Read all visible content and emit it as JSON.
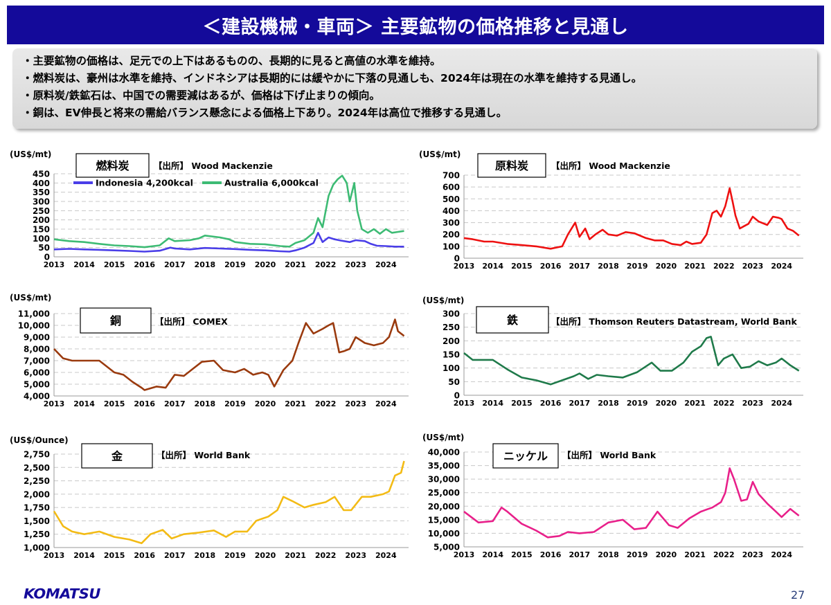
{
  "header": {
    "title": "＜建設機械・車両＞ 主要鉱物の価格推移と見通し"
  },
  "summary": [
    "・主要鉱物の価格は、足元での上下はあるものの、長期的に見ると高値の水準を維持。",
    "・燃料炭は、豪州は水準を維持、インドネシアは長期的には緩やかに下落の見通しも、2024年は現在の水準を維持する見通し。",
    "・原料炭/鉄鉱石は、中国での需要減はあるが、価格は下げ止まりの傾向。",
    "・銅は、EV伸長と将来の需給バランス懸念による価格上下あり。2024年は高位で推移する見通し。"
  ],
  "footer": {
    "logo": "KOMATSU",
    "page_number": "27"
  },
  "colors": {
    "title_bg": "#140a9a",
    "indonesia": "#4a3ee8",
    "australia": "#3dbb74",
    "coking": "#ee1111",
    "copper": "#9a3a0e",
    "iron": "#1f7a4a",
    "gold": "#f3bb15",
    "nickel": "#e8208a"
  },
  "chart_data": [
    {
      "type": "line",
      "title": "燃料炭",
      "source": "【出所】 Wood Mackenzie",
      "ylabel": "(US$/mt)",
      "xlim": [
        2013,
        2024.75
      ],
      "ylim": [
        0,
        450
      ],
      "yticks": [
        "0",
        "50",
        "100",
        "150",
        "200",
        "250",
        "300",
        "350",
        "400",
        "450"
      ],
      "xticks": [
        "2013",
        "2014",
        "2015",
        "2016",
        "2017",
        "2018",
        "2019",
        "2020",
        "2021",
        "2022",
        "2023",
        "2024"
      ],
      "series": [
        {
          "name": "Indonesia 4,200kcal",
          "color": "#4a3ee8",
          "x": [
            2013,
            2013.5,
            2014,
            2014.5,
            2015,
            2015.5,
            2016,
            2016.5,
            2016.85,
            2017,
            2017.5,
            2018,
            2018.5,
            2019,
            2019.5,
            2020,
            2020.5,
            2020.8,
            2021,
            2021.3,
            2021.6,
            2021.75,
            2021.9,
            2022.1,
            2022.3,
            2022.5,
            2022.8,
            2023,
            2023.3,
            2023.5,
            2023.7,
            2024,
            2024.3,
            2024.6
          ],
          "values": [
            40,
            43,
            40,
            38,
            35,
            32,
            28,
            33,
            50,
            45,
            40,
            48,
            45,
            42,
            38,
            35,
            30,
            28,
            35,
            50,
            75,
            130,
            80,
            105,
            95,
            88,
            80,
            90,
            85,
            70,
            60,
            58,
            55,
            55
          ]
        },
        {
          "name": "Australia 6,000kcal",
          "color": "#3dbb74",
          "x": [
            2013,
            2013.5,
            2014,
            2014.5,
            2015,
            2015.5,
            2016,
            2016.5,
            2016.8,
            2017,
            2017.5,
            2017.8,
            2018,
            2018.5,
            2018.8,
            2019,
            2019.5,
            2020,
            2020.5,
            2020.8,
            2021,
            2021.3,
            2021.6,
            2021.75,
            2021.9,
            2022.1,
            2022.25,
            2022.4,
            2022.55,
            2022.7,
            2022.8,
            2022.95,
            2023.05,
            2023.2,
            2023.4,
            2023.6,
            2023.8,
            2024,
            2024.2,
            2024.4,
            2024.6
          ],
          "values": [
            95,
            85,
            80,
            70,
            62,
            58,
            52,
            62,
            100,
            85,
            90,
            100,
            115,
            105,
            95,
            80,
            70,
            68,
            58,
            55,
            75,
            90,
            130,
            210,
            160,
            330,
            390,
            420,
            440,
            400,
            300,
            400,
            250,
            150,
            130,
            150,
            125,
            150,
            130,
            135,
            140
          ]
        }
      ]
    },
    {
      "type": "line",
      "title": "原料炭",
      "source": "【出所】 Wood Mackenzie",
      "ylabel": "(US$/mt)",
      "xlim": [
        2013,
        2024.75
      ],
      "ylim": [
        0,
        700
      ],
      "yticks": [
        "0",
        "100",
        "200",
        "300",
        "400",
        "500",
        "600",
        "700"
      ],
      "xticks": [
        "2013",
        "2014",
        "2015",
        "2016",
        "2017",
        "2018",
        "2019",
        "2020",
        "2021",
        "2022",
        "2023",
        "2024"
      ],
      "series": [
        {
          "color": "#ee1111",
          "x": [
            2013,
            2013.3,
            2013.7,
            2014,
            2014.5,
            2015,
            2015.5,
            2016,
            2016.4,
            2016.6,
            2016.85,
            2017,
            2017.2,
            2017.35,
            2017.55,
            2017.8,
            2018,
            2018.3,
            2018.6,
            2018.9,
            2019.3,
            2019.6,
            2019.9,
            2020.2,
            2020.5,
            2020.7,
            2020.9,
            2021.2,
            2021.4,
            2021.6,
            2021.75,
            2021.9,
            2022.05,
            2022.2,
            2022.3,
            2022.4,
            2022.55,
            2022.7,
            2022.85,
            2023,
            2023.2,
            2023.5,
            2023.7,
            2023.9,
            2024,
            2024.2,
            2024.4,
            2024.6
          ],
          "values": [
            170,
            160,
            140,
            140,
            120,
            110,
            100,
            80,
            100,
            200,
            300,
            180,
            250,
            160,
            200,
            240,
            200,
            190,
            220,
            210,
            170,
            150,
            150,
            120,
            110,
            140,
            120,
            130,
            200,
            380,
            400,
            350,
            440,
            590,
            480,
            360,
            250,
            270,
            290,
            350,
            310,
            280,
            350,
            340,
            330,
            250,
            230,
            190
          ]
        }
      ]
    },
    {
      "type": "line",
      "title": "銅",
      "source": "【出所】 COMEX",
      "ylabel": "(US$/mt)",
      "xlim": [
        2013,
        2024.75
      ],
      "ylim": [
        4000,
        11000
      ],
      "yticks": [
        "4,000",
        "5,000",
        "6,000",
        "7,000",
        "8,000",
        "9,000",
        "10,000",
        "11,000"
      ],
      "xticks": [
        "2013",
        "2014",
        "2015",
        "2016",
        "2017",
        "2018",
        "2019",
        "2020",
        "2021",
        "2022",
        "2023",
        "2024"
      ],
      "series": [
        {
          "color": "#9a3a0e",
          "x": [
            2013,
            2013.3,
            2013.6,
            2014,
            2014.5,
            2015,
            2015.3,
            2015.6,
            2015.9,
            2016,
            2016.4,
            2016.7,
            2017,
            2017.3,
            2017.6,
            2017.9,
            2018.3,
            2018.6,
            2019,
            2019.3,
            2019.6,
            2019.9,
            2020.1,
            2020.3,
            2020.6,
            2020.9,
            2021.1,
            2021.35,
            2021.6,
            2021.9,
            2022.1,
            2022.25,
            2022.45,
            2022.6,
            2022.8,
            2023,
            2023.3,
            2023.6,
            2023.9,
            2024.1,
            2024.3,
            2024.4,
            2024.6
          ],
          "values": [
            8000,
            7200,
            7000,
            7000,
            7000,
            6000,
            5800,
            5200,
            4700,
            4500,
            4800,
            4700,
            5800,
            5700,
            6300,
            6900,
            7000,
            6200,
            6000,
            6300,
            5800,
            6000,
            5800,
            4800,
            6200,
            7000,
            8500,
            10200,
            9300,
            9700,
            10000,
            10200,
            7700,
            7800,
            8000,
            9000,
            8500,
            8300,
            8500,
            9000,
            10500,
            9500,
            9100
          ]
        }
      ]
    },
    {
      "type": "line",
      "title": "鉄",
      "source": "【出所】 Thomson Reuters Datastream, World Bank",
      "ylabel": "(US$/mt)",
      "xlim": [
        2013,
        2024.75
      ],
      "ylim": [
        0,
        300
      ],
      "yticks": [
        "0",
        "50",
        "100",
        "150",
        "200",
        "250",
        "300"
      ],
      "xticks": [
        "2013",
        "2014",
        "2015",
        "2016",
        "2017",
        "2018",
        "2019",
        "2020",
        "2021",
        "2022",
        "2023",
        "2024"
      ],
      "series": [
        {
          "color": "#1f7a4a",
          "x": [
            2013,
            2013.3,
            2013.6,
            2014,
            2014.5,
            2015,
            2015.5,
            2016,
            2016.4,
            2016.8,
            2017,
            2017.3,
            2017.6,
            2018,
            2018.5,
            2019,
            2019.5,
            2019.8,
            2020.2,
            2020.6,
            2020.9,
            2021.2,
            2021.4,
            2021.55,
            2021.8,
            2022,
            2022.3,
            2022.6,
            2022.9,
            2023.2,
            2023.5,
            2023.8,
            2024,
            2024.3,
            2024.6
          ],
          "values": [
            155,
            130,
            130,
            130,
            95,
            65,
            55,
            40,
            55,
            70,
            80,
            60,
            75,
            70,
            65,
            85,
            120,
            90,
            90,
            120,
            160,
            180,
            210,
            215,
            110,
            135,
            150,
            100,
            105,
            125,
            110,
            120,
            135,
            110,
            90
          ]
        }
      ]
    },
    {
      "type": "line",
      "title": "金",
      "source": "【出所】 World Bank",
      "ylabel": "(US$/Ounce)",
      "xlim": [
        2013,
        2024.75
      ],
      "ylim": [
        1000,
        2750
      ],
      "yticks": [
        "1,000",
        "1,250",
        "1,500",
        "1,750",
        "2,000",
        "2,250",
        "2,500",
        "2,750"
      ],
      "xticks": [
        "2013",
        "2014",
        "2015",
        "2016",
        "2017",
        "2018",
        "2019",
        "2020",
        "2021",
        "2022",
        "2023",
        "2024"
      ],
      "series": [
        {
          "color": "#f3bb15",
          "x": [
            2013,
            2013.3,
            2013.6,
            2014,
            2014.5,
            2015,
            2015.5,
            2015.9,
            2016.2,
            2016.6,
            2016.9,
            2017.3,
            2017.8,
            2018.3,
            2018.7,
            2019,
            2019.4,
            2019.7,
            2020.1,
            2020.4,
            2020.6,
            2020.9,
            2021.3,
            2021.6,
            2022,
            2022.3,
            2022.6,
            2022.85,
            2023.2,
            2023.5,
            2023.9,
            2024.1,
            2024.3,
            2024.5,
            2024.6
          ],
          "values": [
            1680,
            1400,
            1300,
            1250,
            1300,
            1200,
            1150,
            1080,
            1250,
            1330,
            1170,
            1250,
            1280,
            1320,
            1200,
            1300,
            1300,
            1500,
            1580,
            1700,
            1950,
            1870,
            1750,
            1800,
            1850,
            1950,
            1700,
            1700,
            1950,
            1950,
            2000,
            2050,
            2350,
            2400,
            2620
          ]
        }
      ]
    },
    {
      "type": "line",
      "title": "ニッケル",
      "source": "【出所】 World Bank",
      "ylabel": "(US$/mt)",
      "xlim": [
        2013,
        2024.75
      ],
      "ylim": [
        5000,
        40000
      ],
      "yticks": [
        "5,000",
        "10,000",
        "15,000",
        "20,000",
        "25,000",
        "30,000",
        "35,000",
        "40,000"
      ],
      "xticks": [
        "2013",
        "2014",
        "2015",
        "2016",
        "2017",
        "2018",
        "2019",
        "2020",
        "2021",
        "2022",
        "2023",
        "2024"
      ],
      "series": [
        {
          "color": "#e8208a",
          "x": [
            2013,
            2013.5,
            2014,
            2014.3,
            2014.5,
            2015,
            2015.5,
            2015.9,
            2016.3,
            2016.6,
            2017,
            2017.5,
            2018,
            2018.5,
            2018.9,
            2019.3,
            2019.7,
            2020.1,
            2020.4,
            2020.8,
            2021.2,
            2021.6,
            2021.9,
            2022.05,
            2022.2,
            2022.35,
            2022.6,
            2022.8,
            2023,
            2023.2,
            2023.5,
            2023.8,
            2024,
            2024.3,
            2024.6
          ],
          "values": [
            18000,
            14000,
            14500,
            19500,
            18000,
            13500,
            11000,
            8500,
            9000,
            10500,
            10000,
            10500,
            14000,
            15000,
            11500,
            12000,
            18000,
            13000,
            12000,
            15500,
            18000,
            19500,
            21500,
            25000,
            34000,
            30000,
            22000,
            22500,
            29000,
            24500,
            21000,
            18000,
            16000,
            19000,
            16500
          ]
        }
      ]
    }
  ]
}
